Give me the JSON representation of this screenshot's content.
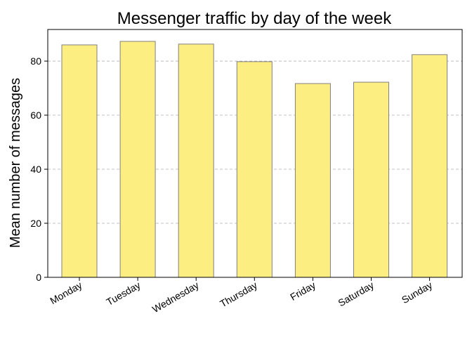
{
  "chart_data": {
    "type": "bar",
    "title": "Messenger traffic by day of the week",
    "xlabel": "",
    "ylabel": "Mean number of messages",
    "categories": [
      "Monday",
      "Tuesday",
      "Wednesday",
      "Thursday",
      "Friday",
      "Saturday",
      "Sunday"
    ],
    "values": [
      86.0,
      87.3,
      86.3,
      79.8,
      71.7,
      72.2,
      82.4
    ],
    "ylim": [
      0,
      91.7
    ],
    "yticks": [
      0,
      20,
      40,
      60,
      80
    ],
    "grid": "horizontal dashed",
    "bar_color": "#fdee82",
    "bar_edge_color": "#808080"
  }
}
